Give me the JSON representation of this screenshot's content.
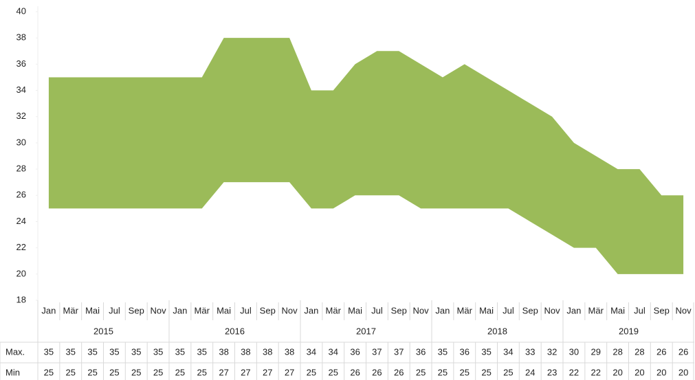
{
  "chart_data": {
    "type": "range_area",
    "categories": [
      "Jan",
      "Mär",
      "Mai",
      "Jul",
      "Sep",
      "Nov",
      "Jan",
      "Mär",
      "Mai",
      "Jul",
      "Sep",
      "Nov",
      "Jan",
      "Mär",
      "Mai",
      "Jul",
      "Sep",
      "Nov",
      "Jan",
      "Mär",
      "Mai",
      "Jul",
      "Sep",
      "Nov",
      "Jan",
      "Mär",
      "Mai",
      "Jul",
      "Sep",
      "Nov"
    ],
    "years": [
      "2015",
      "2016",
      "2017",
      "2018",
      "2019"
    ],
    "series": [
      {
        "name": "Max.",
        "values": [
          35,
          35,
          35,
          35,
          35,
          35,
          35,
          35,
          38,
          38,
          38,
          38,
          34,
          34,
          36,
          37,
          37,
          36,
          35,
          36,
          35,
          34,
          33,
          32,
          30,
          29,
          28,
          28,
          26,
          26
        ]
      },
      {
        "name": "Min",
        "values": [
          25,
          25,
          25,
          25,
          25,
          25,
          25,
          25,
          27,
          27,
          27,
          27,
          25,
          25,
          26,
          26,
          26,
          25,
          25,
          25,
          25,
          25,
          24,
          23,
          22,
          22,
          20,
          20,
          20,
          20
        ]
      }
    ],
    "color": "#9bbb59",
    "ylim": [
      18,
      40
    ],
    "yticks": [
      18,
      20,
      22,
      24,
      26,
      28,
      30,
      32,
      34,
      36,
      38,
      40
    ]
  }
}
